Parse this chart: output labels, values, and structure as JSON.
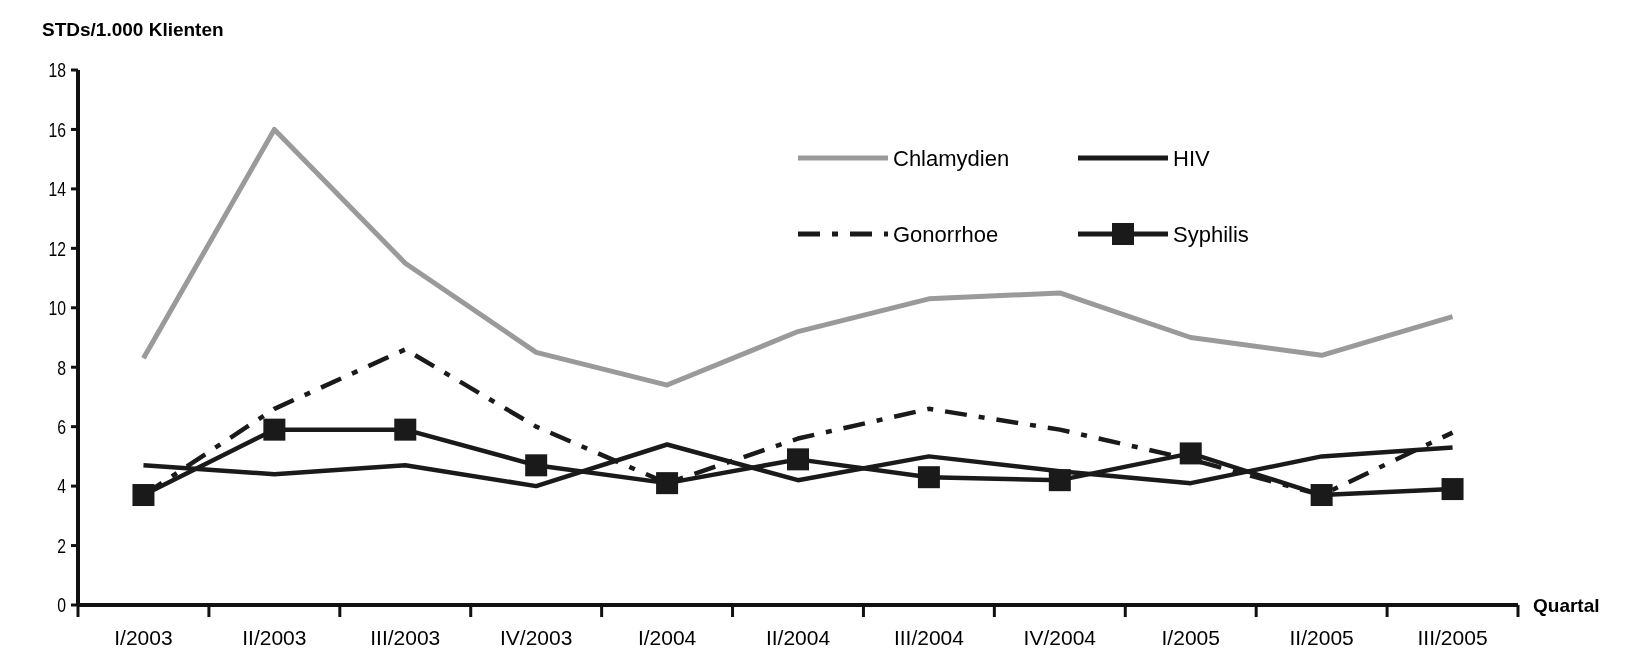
{
  "chart_data": {
    "type": "line",
    "ylabel": "STDs/1.000 Klienten",
    "xlabel": "Quartal",
    "categories": [
      "I/2003",
      "II/2003",
      "III/2003",
      "IV/2003",
      "I/2004",
      "II/2004",
      "III/2004",
      "IV/2004",
      "I/2005",
      "II/2005",
      "III/2005"
    ],
    "ylim": [
      0,
      18
    ],
    "yticks": [
      0,
      2,
      4,
      6,
      8,
      10,
      12,
      14,
      16,
      18
    ],
    "grid": false,
    "legend": "top right",
    "series": [
      {
        "name": "Chlamydien",
        "color": "#9a9a9a",
        "line_style": "solid",
        "marker": "none",
        "values": [
          8.3,
          16,
          11.5,
          8.5,
          7.4,
          9.2,
          10.3,
          10.5,
          9.0,
          8.4,
          9.7
        ]
      },
      {
        "name": "HIV",
        "color": "#1a1a1a",
        "line_style": "solid",
        "marker": "none",
        "values": [
          4.7,
          4.4,
          4.7,
          4.0,
          5.4,
          4.2,
          5.0,
          4.5,
          4.1,
          5.0,
          5.3
        ]
      },
      {
        "name": "Gonorrhoe",
        "color": "#1a1a1a",
        "line_style": "dashed",
        "marker": "none",
        "values": [
          3.7,
          6.6,
          8.6,
          6.0,
          4.1,
          5.6,
          6.6,
          5.9,
          4.9,
          3.7,
          5.8
        ]
      },
      {
        "name": "Syphilis",
        "color": "#1a1a1a",
        "line_style": "solid",
        "marker": "square",
        "values": [
          3.7,
          5.9,
          5.9,
          4.7,
          4.1,
          4.9,
          4.3,
          4.2,
          5.1,
          3.7,
          3.9
        ]
      }
    ]
  }
}
